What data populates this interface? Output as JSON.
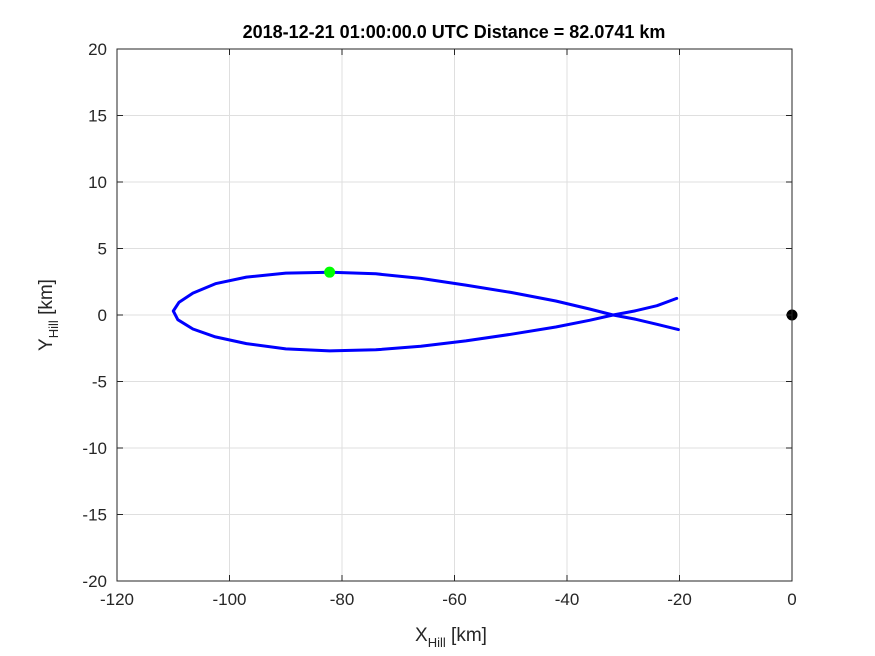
{
  "chart_data": {
    "type": "line",
    "title": "2018-12-21 01:00:00.0 UTC Distance = 82.0741 km",
    "xlabel": {
      "main": "X",
      "sub": "Hill",
      "unit": " [km]"
    },
    "ylabel": {
      "main": "Y",
      "sub": "Hill",
      "unit": " [km]"
    },
    "xlim": [
      -120,
      0
    ],
    "ylim": [
      -20,
      20
    ],
    "xticks": [
      -120,
      -100,
      -80,
      -60,
      -40,
      -20,
      0
    ],
    "yticks": [
      -20,
      -15,
      -10,
      -5,
      0,
      5,
      10,
      15,
      20
    ],
    "grid": true,
    "series": [
      {
        "color": "#0000ff",
        "x": [
          -20.2,
          -24,
          -28,
          -31.8,
          -36,
          -42,
          -50,
          -58,
          -66,
          -74,
          -82,
          -90,
          -97,
          -102.5,
          -106.5,
          -109.0,
          -110.0,
          -109.2,
          -106.5,
          -102.5,
          -97,
          -90,
          -82.2,
          -74,
          -66,
          -58,
          -50,
          -42,
          -36,
          -31.8,
          -28,
          -24,
          -20.5
        ],
        "y": [
          -1.1,
          -0.7,
          -0.3,
          0.0,
          0.45,
          1.05,
          1.7,
          2.25,
          2.75,
          3.1,
          3.22,
          3.15,
          2.85,
          2.35,
          1.65,
          0.95,
          0.3,
          -0.35,
          -1.05,
          -1.65,
          -2.15,
          -2.55,
          -2.7,
          -2.62,
          -2.35,
          -1.95,
          -1.45,
          -0.9,
          -0.4,
          0.0,
          0.3,
          0.7,
          1.25
        ]
      }
    ],
    "markers": [
      {
        "x": -82.2,
        "y": 3.22,
        "color": "#00ff00"
      },
      {
        "x": 0,
        "y": 0,
        "color": "#000000"
      }
    ]
  }
}
